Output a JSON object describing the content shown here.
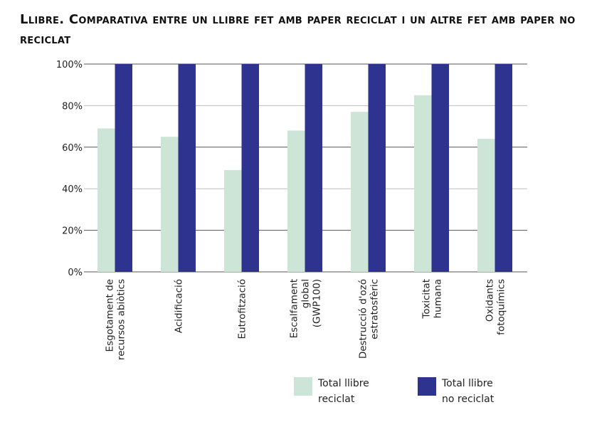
{
  "title": "Llibre. Comparativa entre un llibre fet amb paper reciclat i un altre fet amb paper no reciclat",
  "colors": {
    "reciclat": "#cde5d6",
    "no_reciclat": "#2e3390"
  },
  "chart_data": {
    "type": "bar",
    "title": "Llibre. Comparativa entre un llibre fet amb paper reciclat i un altre fet amb paper no reciclat",
    "categories": [
      [
        "Esgotament de",
        "recursos abiòtics"
      ],
      [
        "Acidificació"
      ],
      [
        "Eutrofització"
      ],
      [
        "Escalfament",
        "global",
        "(GWP100)"
      ],
      [
        "Destrucció d'ozó",
        "estratosfèric"
      ],
      [
        "Toxicitat",
        "humana"
      ],
      [
        "Oxidants",
        "fotoquímics"
      ]
    ],
    "series": [
      {
        "name": "Total llibre reciclat",
        "values": [
          69,
          65,
          49,
          68,
          77,
          85,
          64
        ]
      },
      {
        "name": "Total llibre no reciclat",
        "values": [
          100,
          100,
          100,
          100,
          100,
          100,
          100
        ]
      }
    ],
    "yticks": [
      "0%",
      "20%",
      "40%",
      "60%",
      "80%",
      "100%"
    ],
    "ylim": [
      0,
      100
    ],
    "grid": true,
    "legend": "bottom-right",
    "xlabel": "",
    "ylabel": ""
  },
  "legend": [
    {
      "line1": "Total llibre",
      "line2": "reciclat"
    },
    {
      "line1": "Total llibre",
      "line2": "no reciclat"
    }
  ]
}
